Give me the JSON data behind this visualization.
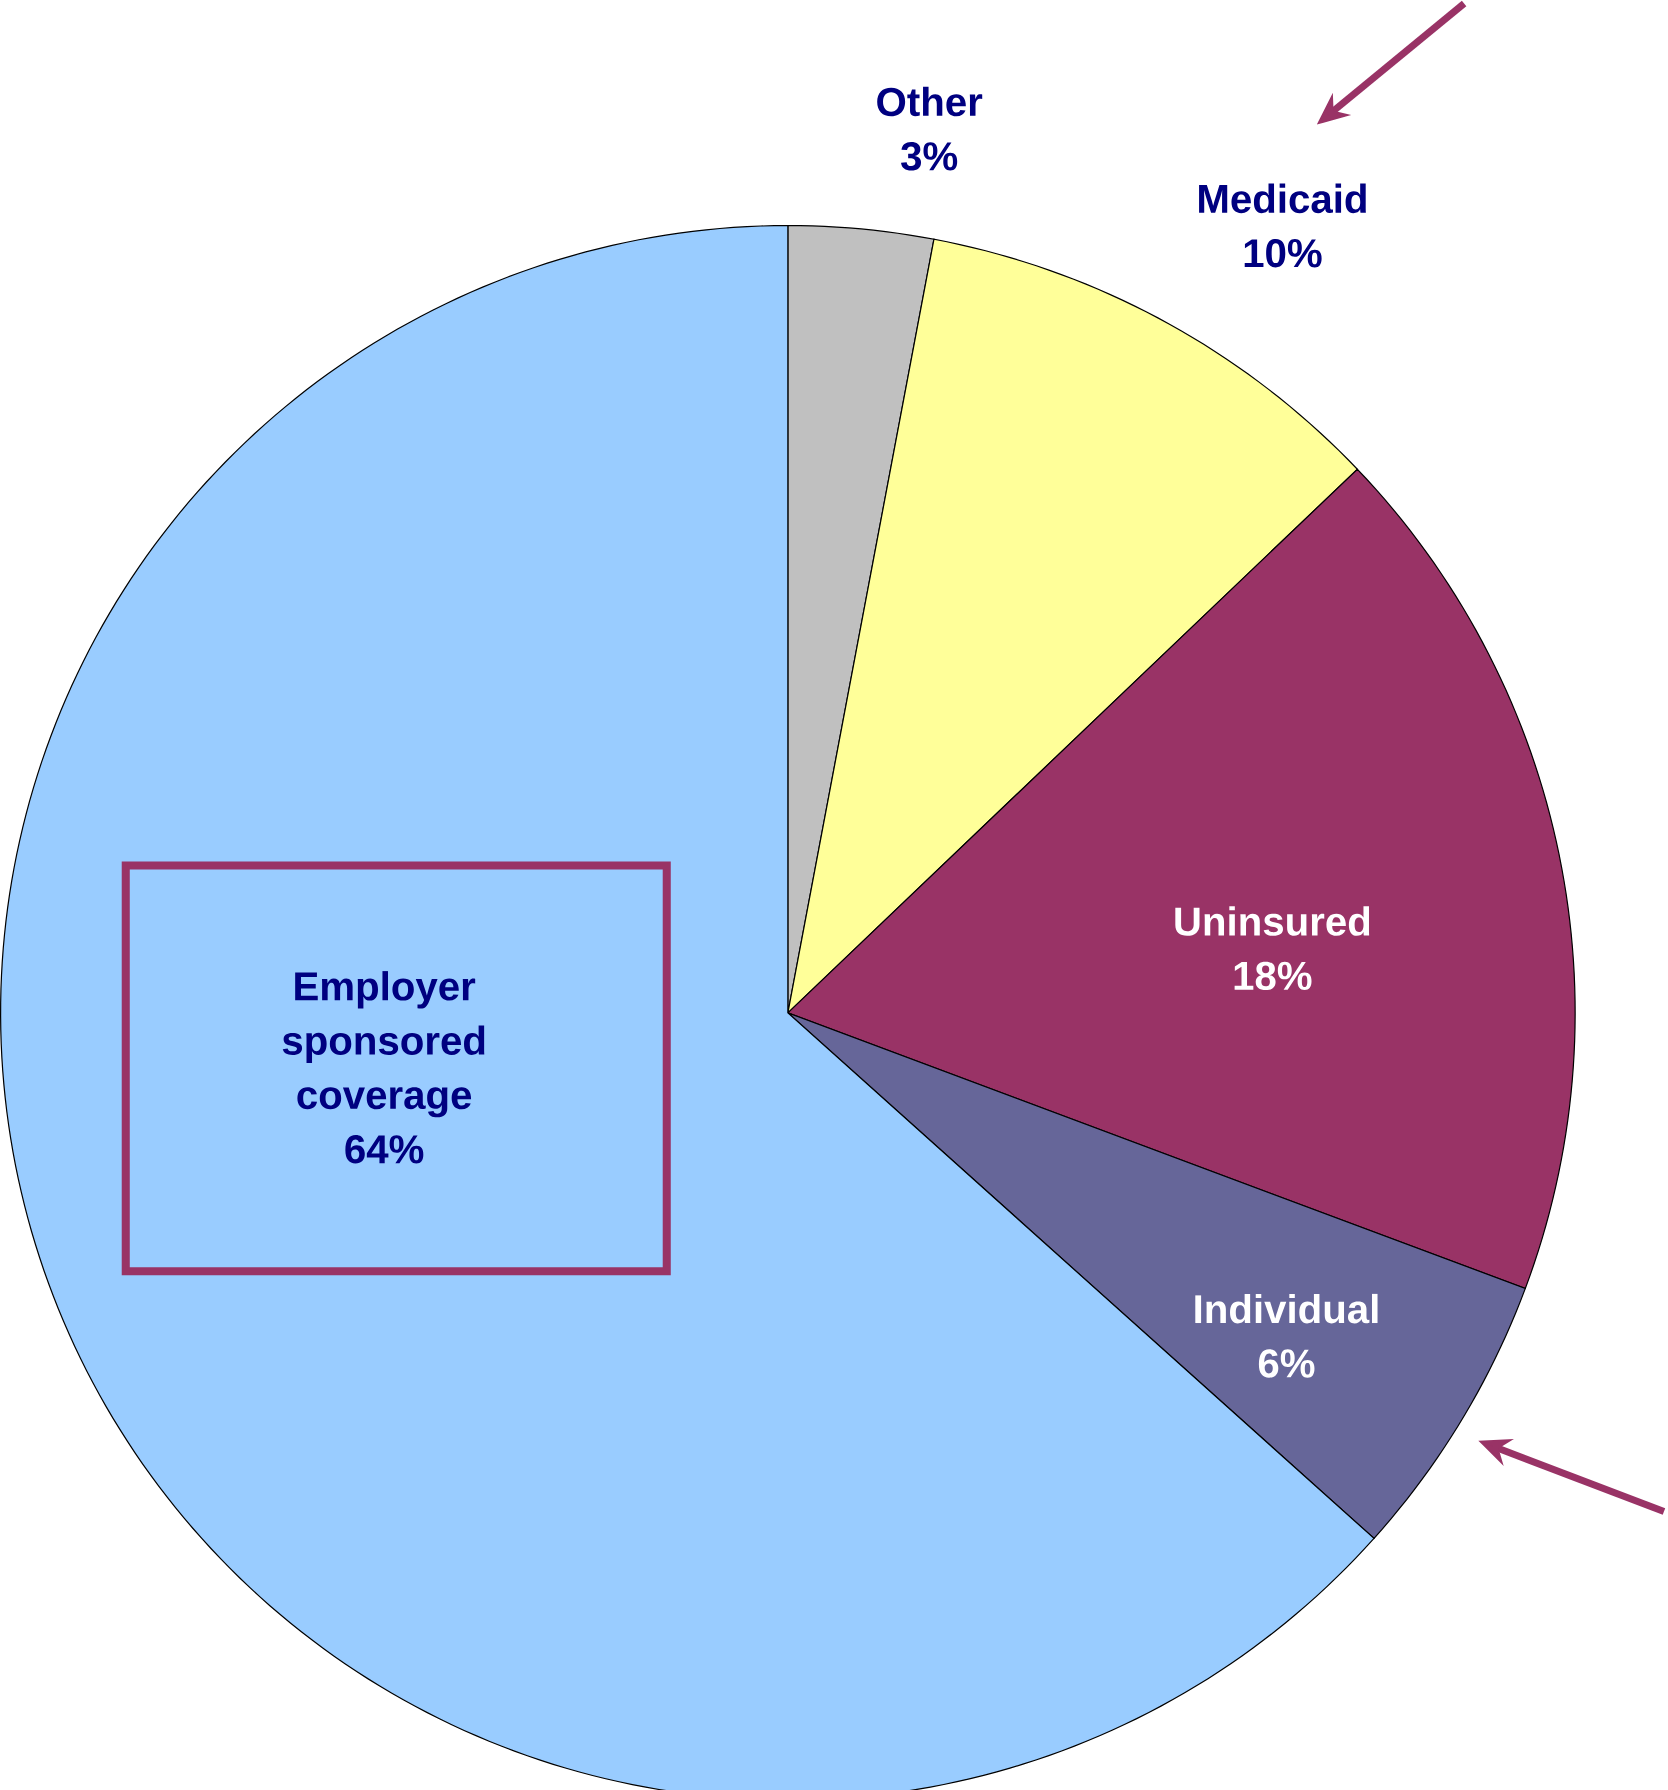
{
  "chart_data": {
    "type": "pie",
    "categories": [
      "Other",
      "Medicaid",
      "Uninsured",
      "Individual",
      "Employer sponsored coverage"
    ],
    "values": [
      3,
      10,
      18,
      6,
      64
    ],
    "colors": [
      "#c0c0c0",
      "#ffff99",
      "#993366",
      "#666699",
      "#99ccff"
    ],
    "value_labels": [
      "3%",
      "10%",
      "18%",
      "6%",
      "64%"
    ]
  }
}
